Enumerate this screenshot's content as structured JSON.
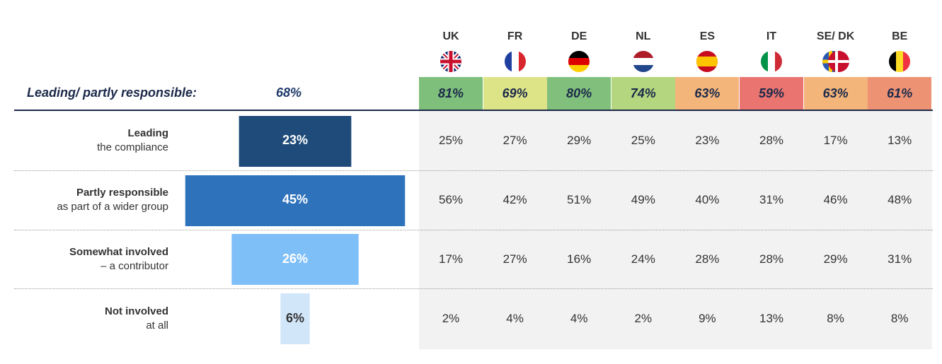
{
  "summary": {
    "label": "Leading/ partly responsible:",
    "value": "68%"
  },
  "countries": [
    {
      "code": "UK",
      "flag": "uk-flag-icon",
      "highlight": "81%",
      "highlight_color": "#7dbf7b",
      "values": [
        "25%",
        "56%",
        "17%",
        "2%"
      ]
    },
    {
      "code": "FR",
      "flag": "fr-flag-icon",
      "highlight": "69%",
      "highlight_color": "#dde488",
      "values": [
        "27%",
        "42%",
        "27%",
        "4%"
      ]
    },
    {
      "code": "DE",
      "flag": "de-flag-icon",
      "highlight": "80%",
      "highlight_color": "#81c07c",
      "values": [
        "29%",
        "51%",
        "16%",
        "4%"
      ]
    },
    {
      "code": "NL",
      "flag": "nl-flag-icon",
      "highlight": "74%",
      "highlight_color": "#b4d67f",
      "values": [
        "25%",
        "49%",
        "24%",
        "2%"
      ]
    },
    {
      "code": "ES",
      "flag": "es-flag-icon",
      "highlight": "63%",
      "highlight_color": "#f4b57a",
      "values": [
        "23%",
        "40%",
        "28%",
        "9%"
      ]
    },
    {
      "code": "IT",
      "flag": "it-flag-icon",
      "highlight": "59%",
      "highlight_color": "#ea7470",
      "values": [
        "28%",
        "31%",
        "28%",
        "13%"
      ]
    },
    {
      "code": "SE/ DK",
      "flag": "se-dk-flag-icon",
      "highlight": "63%",
      "highlight_color": "#f4b57a",
      "values": [
        "17%",
        "46%",
        "29%",
        "8%"
      ]
    },
    {
      "code": "BE",
      "flag": "be-flag-icon",
      "highlight": "61%",
      "highlight_color": "#ee9274",
      "values": [
        "13%",
        "48%",
        "31%",
        "8%"
      ]
    }
  ],
  "chart_data": {
    "type": "bar",
    "categories": [
      "Leading the compliance",
      "Partly responsible as part of a wider group",
      "Somewhat involved – a contributor",
      "Not involved at all"
    ],
    "category_lines": [
      [
        "Leading",
        "the compliance"
      ],
      [
        "Partly responsible",
        "as part of a wider group"
      ],
      [
        "Somewhat involved",
        "– a contributor"
      ],
      [
        "Not involved",
        "at all"
      ]
    ],
    "values": [
      23,
      45,
      26,
      6
    ],
    "value_labels": [
      "23%",
      "45%",
      "26%",
      "6%"
    ],
    "colors": [
      "#1f4b7a",
      "#2e72bb",
      "#7fbff8",
      "#d2e6fa"
    ],
    "label_colors": [
      "#ffffff",
      "#ffffff",
      "#ffffff",
      "#333333"
    ],
    "orientation": "centered-horizontal"
  }
}
